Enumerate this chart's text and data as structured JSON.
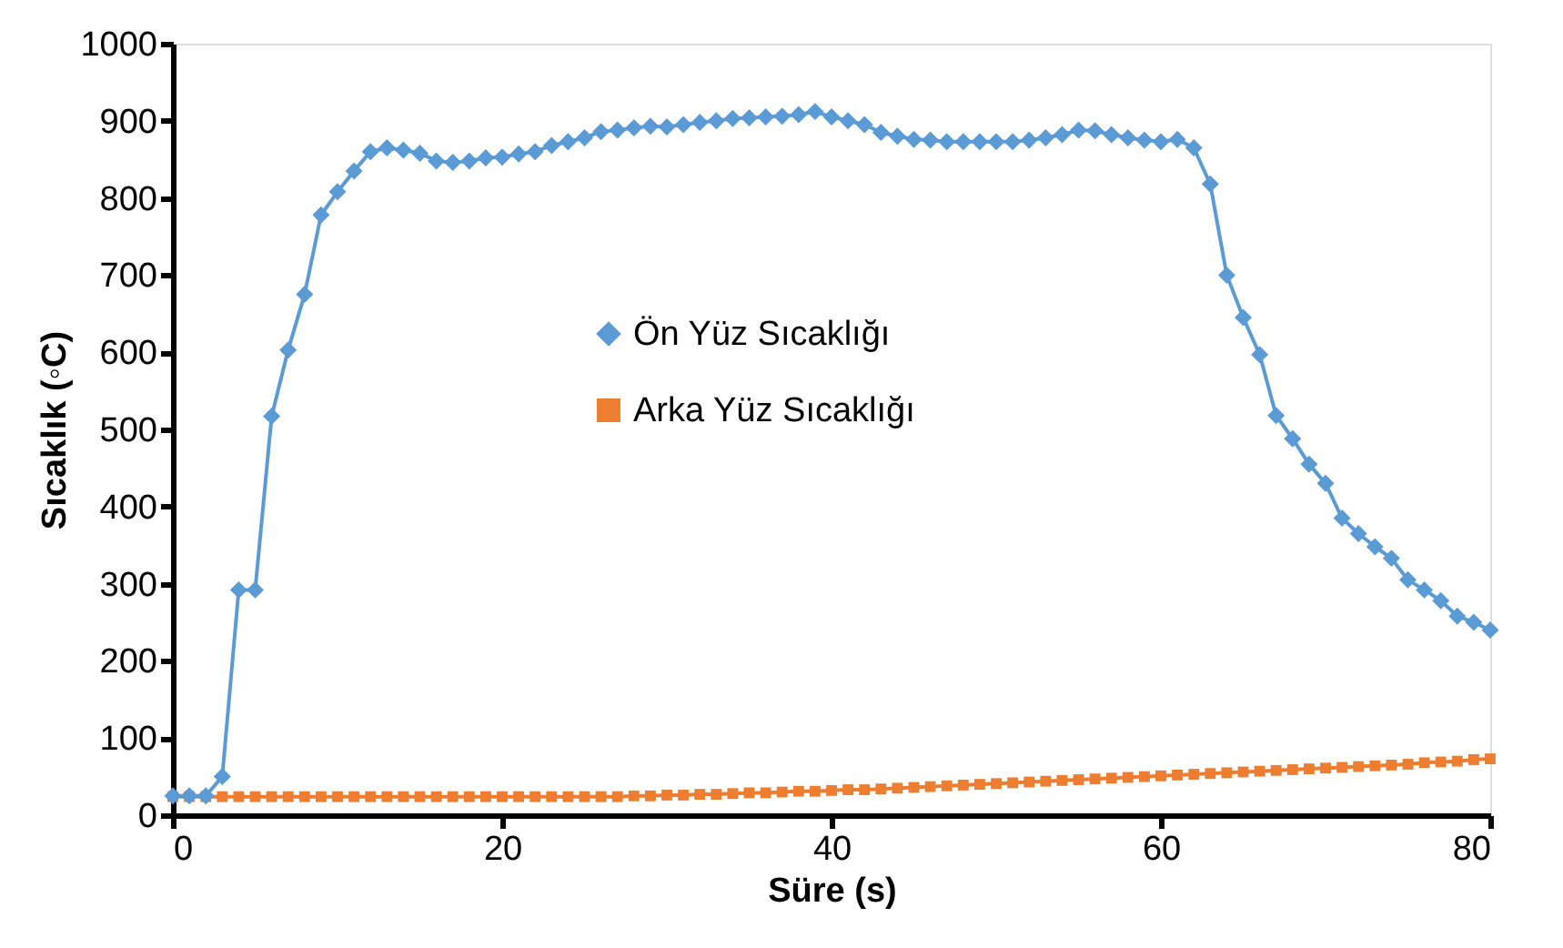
{
  "chart_data": {
    "type": "line",
    "xlabel": "Süre (s)",
    "ylabel": "Sıcaklık (◦C)",
    "x": [
      0,
      1,
      2,
      3,
      4,
      5,
      6,
      7,
      8,
      9,
      10,
      11,
      12,
      13,
      14,
      15,
      16,
      17,
      18,
      19,
      20,
      21,
      22,
      23,
      24,
      25,
      26,
      27,
      28,
      29,
      30,
      31,
      32,
      33,
      34,
      35,
      36,
      37,
      38,
      39,
      40,
      41,
      42,
      43,
      44,
      45,
      46,
      47,
      48,
      49,
      50,
      51,
      52,
      53,
      54,
      55,
      56,
      57,
      58,
      59,
      60,
      61,
      62,
      63,
      64,
      65,
      66,
      67,
      68,
      69,
      70,
      71,
      72,
      73,
      74,
      75,
      76,
      77,
      78,
      79,
      80
    ],
    "series": [
      {
        "name": "Ön Yüz Sıcaklığı",
        "color": "#5b9bd5",
        "marker": "diamond",
        "values": [
          25,
          25,
          25,
          50,
          292,
          292,
          517,
          603,
          675,
          778,
          808,
          835,
          860,
          865,
          862,
          858,
          848,
          846,
          848,
          852,
          853,
          857,
          860,
          868,
          873,
          878,
          886,
          888,
          891,
          893,
          892,
          895,
          898,
          900,
          903,
          904,
          905,
          906,
          908,
          912,
          905,
          900,
          895,
          885,
          880,
          876,
          875,
          873,
          873,
          873,
          873,
          873,
          875,
          878,
          882,
          888,
          887,
          882,
          878,
          875,
          873,
          876,
          865,
          818,
          700,
          645,
          597,
          518,
          488,
          455,
          430,
          385,
          365,
          348,
          333,
          305,
          292,
          278,
          258,
          250,
          240
        ]
      },
      {
        "name": "Arka Yüz Sıcaklığı",
        "color": "#ed7d31",
        "marker": "square",
        "values": [
          24,
          24,
          24,
          24,
          24,
          24,
          24,
          24,
          24,
          24,
          24,
          24,
          24,
          24,
          24,
          24,
          24,
          24,
          24,
          24,
          24,
          24,
          24,
          24,
          24,
          24,
          24,
          24,
          25,
          25,
          26,
          26,
          27,
          27,
          28,
          29,
          29,
          30,
          31,
          31,
          32,
          33,
          33,
          34,
          35,
          36,
          37,
          38,
          39,
          40,
          41,
          42,
          43,
          44,
          45,
          46,
          47,
          48,
          49,
          50,
          51,
          52,
          53,
          54,
          55,
          56,
          57,
          58,
          59,
          60,
          61,
          62,
          63,
          64,
          65,
          66,
          68,
          69,
          70,
          72,
          73
        ]
      }
    ],
    "xlim": [
      0,
      80
    ],
    "xticks": [
      0,
      20,
      40,
      60,
      80
    ],
    "ylim": [
      0,
      1000
    ],
    "yticks": [
      0,
      100,
      200,
      300,
      400,
      500,
      600,
      700,
      800,
      900,
      1000
    ],
    "grid": false,
    "legend": "center",
    "line_style": "solid"
  }
}
